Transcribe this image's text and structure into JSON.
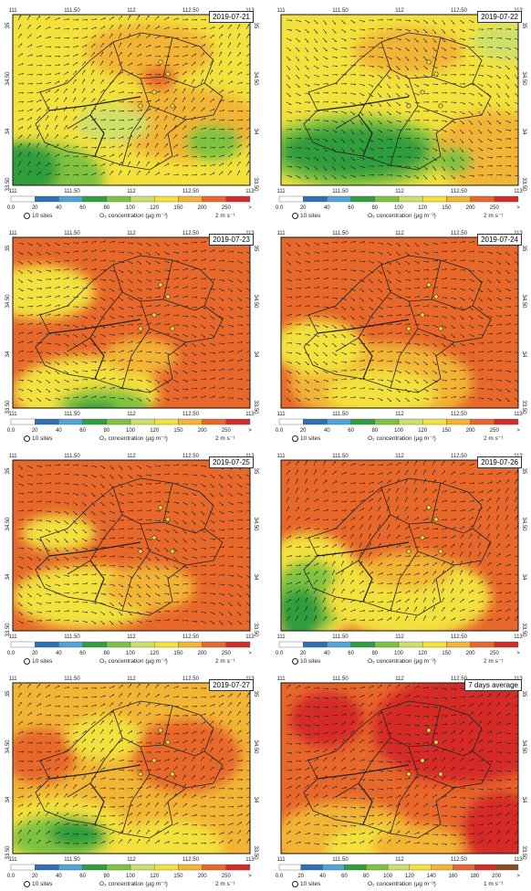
{
  "panels": [
    {
      "date": "2019-07-21",
      "wind_unit": "2 m s⁻¹",
      "show_left_lat": true
    },
    {
      "date": "2019-07-22",
      "wind_unit": "2 m s⁻¹",
      "show_left_lat": false
    },
    {
      "date": "2019-07-23",
      "wind_unit": "2 m s⁻¹",
      "show_left_lat": true
    },
    {
      "date": "2019-07-24",
      "wind_unit": "2 m s⁻¹",
      "show_left_lat": false
    },
    {
      "date": "2019-07-25",
      "wind_unit": "2 m s⁻¹",
      "show_left_lat": true
    },
    {
      "date": "2019-07-26",
      "wind_unit": "2 m s⁻¹",
      "show_left_lat": false
    },
    {
      "date": "2019-07-27",
      "wind_unit": "2 m s⁻¹",
      "show_left_lat": true
    },
    {
      "date": "7 days average",
      "wind_unit": "1 m s⁻¹",
      "show_left_lat": false
    }
  ],
  "axis": {
    "lon_ticks": [
      "111",
      "111.50",
      "112",
      "112.50",
      "113"
    ],
    "lat_ticks": [
      "35",
      "34.50",
      "34",
      "33.50"
    ]
  },
  "colorbar": {
    "labels": [
      "0.0",
      "20",
      "40",
      "60",
      "80",
      "100",
      "120",
      "150",
      "200",
      "250",
      ">"
    ],
    "colors": [
      "#ffffff",
      "#2e6fb5",
      "#4fa3d8",
      "#2e9e3e",
      "#7fc241",
      "#cfe06a",
      "#f3e13c",
      "#f2b434",
      "#e8672a",
      "#d62a27",
      "#8b4a24"
    ],
    "colors_avg": [
      "#ffffff",
      "#2e6fb5",
      "#4fa3d8",
      "#2e9e3e",
      "#7fc241",
      "#cfe06a",
      "#f3e13c",
      "#f2b434",
      "#e8672a",
      "#d62a27",
      "#8b4a24"
    ],
    "labels_avg": [
      "0.0",
      "20",
      "40",
      "60",
      "80",
      "100",
      "120",
      "140",
      "160",
      "180",
      "200",
      ">"
    ],
    "sites_label": "10 sites",
    "o3_label": "O₃ concentration (μg m⁻³)"
  }
}
